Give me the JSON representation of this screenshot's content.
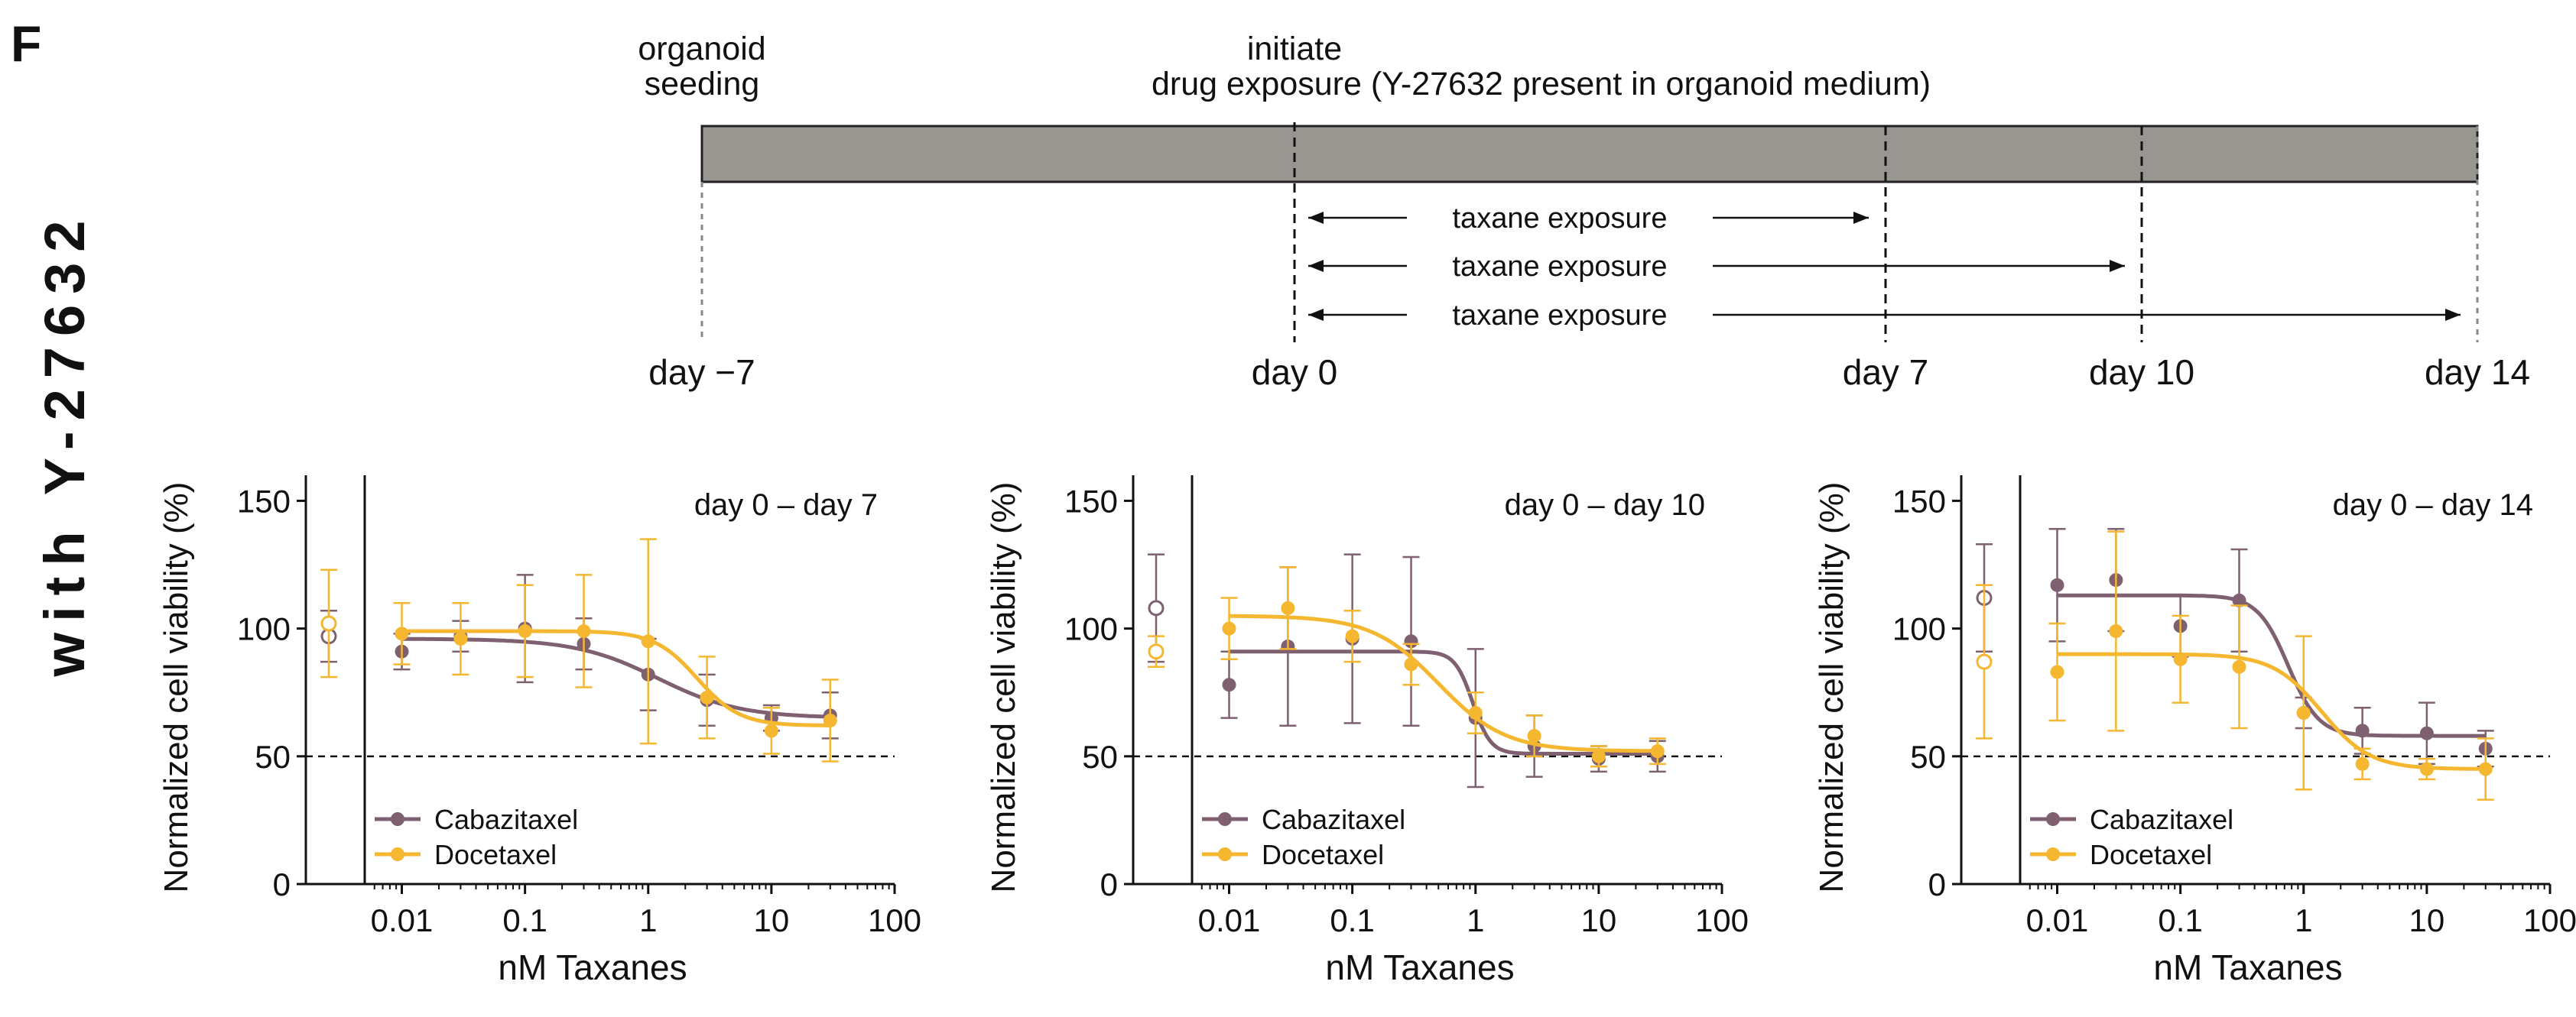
{
  "panel_letter": "F",
  "side_label": "with Y-27632",
  "timeline": {
    "bar_color": "#999590",
    "events": [
      {
        "day": -7,
        "line1": "organoid",
        "line2": "seeding"
      },
      {
        "day": 0,
        "line1": "initiate",
        "line2": "drug exposure (Y-27632 present in organoid medium)"
      }
    ],
    "days": [
      {
        "day": -7,
        "label": "day −7"
      },
      {
        "day": 0,
        "label": "day 0"
      },
      {
        "day": 7,
        "label": "day 7"
      },
      {
        "day": 10,
        "label": "day 10"
      },
      {
        "day": 14,
        "label": "day 14"
      }
    ],
    "exposures": [
      {
        "start_day": 0,
        "end_day": 7,
        "label": "taxane exposure"
      },
      {
        "start_day": 0,
        "end_day": 10,
        "label": "taxane exposure"
      },
      {
        "start_day": 0,
        "end_day": 14,
        "label": "taxane exposure"
      }
    ]
  },
  "colors": {
    "Cabazitaxel": "#7e6070",
    "Docetaxel": "#f5b630"
  },
  "chart_data": [
    {
      "type": "scatter",
      "title": "day 0 – day 7",
      "xlabel": "nM Taxanes",
      "ylabel": "Normalized cell viability (%)",
      "xscale": "log",
      "xlim": [
        0.005,
        100
      ],
      "xticks": [
        0.01,
        0.1,
        1,
        10,
        100
      ],
      "xtick_labels": [
        "0.01",
        "0.1",
        "1",
        "10",
        "100"
      ],
      "ylim": [
        0,
        160
      ],
      "yticks": [
        0,
        50,
        100,
        150
      ],
      "reference_line": 50,
      "x": [
        0.01,
        0.03,
        0.1,
        0.3,
        1,
        3,
        10,
        30
      ],
      "legend": [
        "Cabazitaxel",
        "Docetaxel"
      ],
      "legend_position": "bottom-left",
      "series": [
        {
          "name": "Cabazitaxel",
          "control": 97,
          "control_err": 10,
          "values": [
            91,
            97,
            100,
            94,
            82,
            72,
            65,
            66
          ],
          "errors": [
            7,
            6,
            21,
            10,
            14,
            10,
            5,
            9
          ],
          "fit": {
            "top": 96,
            "bottom": 65,
            "ec50": 1.2,
            "hill": 1.3
          }
        },
        {
          "name": "Docetaxel",
          "control": 102,
          "control_err": 21,
          "values": [
            98,
            96,
            99,
            99,
            95,
            73,
            60,
            64
          ],
          "errors": [
            12,
            14,
            18,
            22,
            40,
            16,
            9,
            16
          ],
          "fit": {
            "top": 99,
            "bottom": 62,
            "ec50": 2.5,
            "hill": 2.5
          }
        }
      ]
    },
    {
      "type": "scatter",
      "title": "day 0 – day 10",
      "xlabel": "nM Taxanes",
      "ylabel": "Normalized cell viability (%)",
      "xscale": "log",
      "xlim": [
        0.005,
        100
      ],
      "xticks": [
        0.01,
        0.1,
        1,
        10,
        100
      ],
      "xtick_labels": [
        "0.01",
        "0.1",
        "1",
        "10",
        "100"
      ],
      "ylim": [
        0,
        160
      ],
      "yticks": [
        0,
        50,
        100,
        150
      ],
      "reference_line": 50,
      "x": [
        0.01,
        0.03,
        0.1,
        0.3,
        1,
        3,
        10,
        30
      ],
      "legend": [
        "Cabazitaxel",
        "Docetaxel"
      ],
      "legend_position": "bottom-left",
      "series": [
        {
          "name": "Cabazitaxel",
          "control": 108,
          "control_err": 21,
          "values": [
            78,
            93,
            96,
            95,
            65,
            54,
            49,
            50
          ],
          "errors": [
            13,
            31,
            33,
            33,
            27,
            12,
            5,
            6
          ],
          "fit": {
            "top": 91,
            "bottom": 51,
            "ec50": 0.95,
            "hill": 6
          }
        },
        {
          "name": "Docetaxel",
          "control": 91,
          "control_err": 6,
          "values": [
            100,
            108,
            97,
            86,
            67,
            58,
            50,
            52
          ],
          "errors": [
            12,
            16,
            10,
            8,
            8,
            8,
            4,
            5
          ],
          "fit": {
            "top": 105,
            "bottom": 52,
            "ec50": 0.5,
            "hill": 1.6
          }
        }
      ]
    },
    {
      "type": "scatter",
      "title": "day 0 – day 14",
      "xlabel": "nM Taxanes",
      "ylabel": "Normalized cell viability (%)",
      "xscale": "log",
      "xlim": [
        0.005,
        100
      ],
      "xticks": [
        0.01,
        0.1,
        1,
        10,
        100
      ],
      "xtick_labels": [
        "0.01",
        "0.1",
        "1",
        "10",
        "100"
      ],
      "ylim": [
        0,
        160
      ],
      "yticks": [
        0,
        50,
        100,
        150
      ],
      "reference_line": 50,
      "x": [
        0.01,
        0.03,
        0.1,
        0.3,
        1,
        3,
        10,
        30
      ],
      "legend": [
        "Cabazitaxel",
        "Docetaxel"
      ],
      "legend_position": "bottom-left",
      "series": [
        {
          "name": "Cabazitaxel",
          "control": 112,
          "control_err": 21,
          "values": [
            117,
            119,
            101,
            111,
            67,
            60,
            59,
            53
          ],
          "errors": [
            22,
            20,
            12,
            20,
            6,
            9,
            12,
            7
          ],
          "fit": {
            "top": 113,
            "bottom": 58,
            "ec50": 0.75,
            "hill": 3.5
          }
        },
        {
          "name": "Docetaxel",
          "control": 87,
          "control_err": 30,
          "values": [
            83,
            99,
            88,
            85,
            67,
            47,
            45,
            45
          ],
          "errors": [
            19,
            39,
            17,
            24,
            30,
            6,
            4,
            12
          ],
          "fit": {
            "top": 90,
            "bottom": 45,
            "ec50": 1.4,
            "hill": 2.2
          }
        }
      ]
    }
  ]
}
